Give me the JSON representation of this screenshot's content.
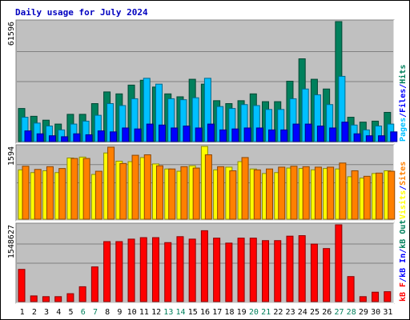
{
  "chart_data": {
    "type": "bar",
    "title": "Daily usage for July 2024",
    "categories": [
      "1",
      "2",
      "3",
      "4",
      "5",
      "6",
      "7",
      "8",
      "9",
      "10",
      "11",
      "12",
      "13",
      "14",
      "15",
      "16",
      "17",
      "18",
      "19",
      "20",
      "21",
      "22",
      "23",
      "24",
      "25",
      "26",
      "27",
      "28",
      "29",
      "30",
      "31"
    ],
    "weekend_days": [
      "6",
      "7",
      "13",
      "14",
      "20",
      "21",
      "27",
      "28"
    ],
    "colors": {
      "pages": "#00805c",
      "files": "#0000ff",
      "hits": "#00c0ff",
      "sites": "#ff8000",
      "visits": "#ffff00",
      "kb_in": "#0000ff",
      "kb_out": "#00805c",
      "kb_f": "#ff0000",
      "weekend_label": "#00805c",
      "title": "#0000c0",
      "panel_bg": "#c0c0c0"
    },
    "panels": [
      {
        "id": "hits-files-pages",
        "max_label": "61596",
        "ylim": [
          0,
          61596
        ],
        "legend": [
          {
            "text": "Pages",
            "color_key": "hits"
          },
          {
            "text": "/",
            "color_key": "files"
          },
          {
            "text": "Files",
            "color_key": "files"
          },
          {
            "text": "/",
            "color_key": "files"
          },
          {
            "text": "Hits",
            "color_key": "pages"
          }
        ],
        "series": [
          {
            "name": "Hits",
            "color_key": "pages",
            "values": [
              17000,
              13000,
              11000,
              9000,
              14000,
              14000,
              19500,
              25500,
              24500,
              29000,
              31500,
              28000,
              24500,
              23000,
              32000,
              29500,
              21000,
              19500,
              21000,
              24500,
              20500,
              20500,
              31000,
              42500,
              32000,
              27000,
              61596,
              12500,
              10000,
              10500,
              15000
            ]
          },
          {
            "name": "Files",
            "color_key": "hits",
            "values": [
              12500,
              9500,
              8000,
              6000,
              9000,
              10500,
              13500,
              19500,
              18500,
              22000,
              32500,
              29500,
              22000,
              21500,
              22500,
              32500,
              18000,
              17000,
              19000,
              18500,
              16500,
              16500,
              22000,
              27000,
              24000,
              19000,
              33500,
              8500,
              6000,
              8000,
              9000
            ]
          },
          {
            "name": "Pages",
            "color_key": "files",
            "values": [
              5500,
              4000,
              3000,
              2500,
              4000,
              3500,
              5500,
              5000,
              7000,
              6500,
              9000,
              8500,
              7000,
              8000,
              7000,
              9000,
              6000,
              6500,
              7000,
              7000,
              6000,
              6000,
              9000,
              9000,
              8000,
              7000,
              10000,
              4000,
              3000,
              3000,
              5000
            ]
          }
        ]
      },
      {
        "id": "visits-sites",
        "max_label": "1594",
        "ylim": [
          0,
          1594
        ],
        "legend": [
          {
            "text": "Visits",
            "color_key": "visits"
          },
          {
            "text": "/",
            "color_key": "files"
          },
          {
            "text": "Sites",
            "color_key": "sites"
          }
        ],
        "series": [
          {
            "name": "Visits",
            "color_key": "visits",
            "values": [
              1080,
              1020,
              1060,
              1020,
              1340,
              1360,
              980,
              1450,
              1270,
              1260,
              1350,
              1210,
              1100,
              1050,
              1170,
              1594,
              1080,
              1140,
              1260,
              1100,
              1000,
              1020,
              1120,
              1110,
              1080,
              1110,
              1100,
              930,
              900,
              1000,
              1060
            ]
          },
          {
            "name": "Sites",
            "color_key": "sites",
            "values": [
              1160,
              1090,
              1150,
              1110,
              1330,
              1330,
              1050,
              1577,
              1220,
              1400,
              1410,
              1170,
              1100,
              1150,
              1120,
              1410,
              1150,
              1060,
              1350,
              1080,
              1100,
              1140,
              1160,
              1150,
              1140,
              1140,
              1230,
              1060,
              940,
              1010,
              1050
            ]
          }
        ]
      },
      {
        "id": "kbytes",
        "max_label": "1548627",
        "ylim": [
          0,
          1548627
        ],
        "legend": [
          {
            "text": "kB F",
            "color_key": "kb_f"
          },
          {
            "text": "/",
            "color_key": "files"
          },
          {
            "text": "kB In",
            "color_key": "kb_in"
          },
          {
            "text": "/",
            "color_key": "files"
          },
          {
            "text": "kB Out",
            "color_key": "kb_out"
          }
        ],
        "series": [
          {
            "name": "kB F",
            "color_key": "kb_f",
            "values": [
              650000,
              115000,
              100000,
              100000,
              160000,
              300000,
              700000,
              1210000,
              1210000,
              1260000,
              1290000,
              1290000,
              1190000,
              1310000,
              1260000,
              1430000,
              1280000,
              1180000,
              1280000,
              1280000,
              1230000,
              1230000,
              1320000,
              1330000,
              1160000,
              1070000,
              1548627,
              505000,
              100000,
              190000,
              200000
            ]
          }
        ]
      }
    ]
  }
}
